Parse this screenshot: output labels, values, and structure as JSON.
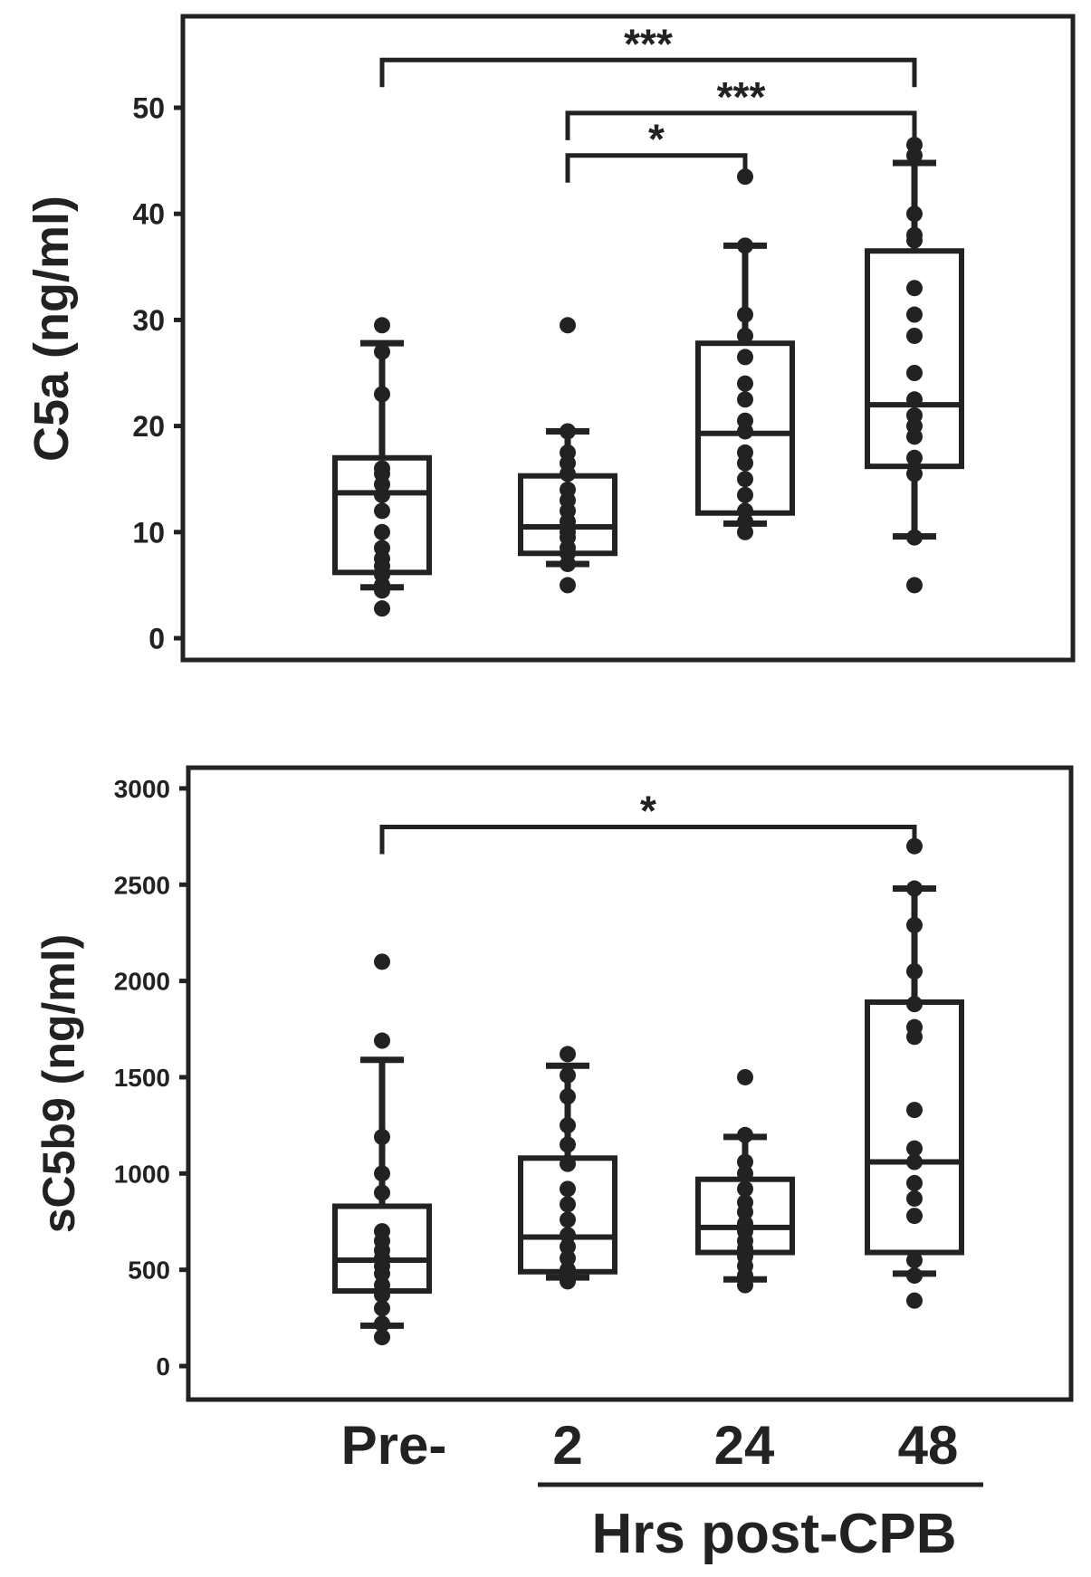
{
  "chart_data": [
    {
      "type": "boxplot",
      "ylabel": "C5a (ng/ml)",
      "ylim": [
        0,
        57
      ],
      "yticks": [
        0,
        10,
        20,
        30,
        40,
        50
      ],
      "categories": [
        "Pre-",
        "2",
        "24",
        "48"
      ],
      "boxes": [
        {
          "category": "Pre-",
          "whisker_low": 4.8,
          "q1": 6.2,
          "median": 13.7,
          "q3": 17.0,
          "whisker_high": 27.8,
          "points": [
            2.8,
            4.5,
            5.0,
            6.0,
            6.8,
            7.5,
            8.5,
            10.0,
            12.0,
            13.5,
            14.5,
            15.5,
            16.0,
            23.0,
            27.0,
            29.5
          ]
        },
        {
          "category": "2",
          "whisker_low": 7.0,
          "q1": 8.0,
          "median": 10.5,
          "q3": 15.3,
          "whisker_high": 19.5,
          "points": [
            5.0,
            7.0,
            8.0,
            8.5,
            9.5,
            10.0,
            10.5,
            11.0,
            12.0,
            13.0,
            14.0,
            15.5,
            16.5,
            17.5,
            19.5,
            29.5
          ]
        },
        {
          "category": "24",
          "whisker_low": 10.8,
          "q1": 11.8,
          "median": 19.3,
          "q3": 27.8,
          "whisker_high": 37.0,
          "points": [
            10.0,
            11.0,
            12.0,
            13.5,
            15.0,
            16.5,
            17.5,
            19.5,
            20.5,
            22.5,
            24.0,
            26.5,
            28.5,
            30.5,
            37.0,
            43.5
          ]
        },
        {
          "category": "48",
          "whisker_low": 9.6,
          "q1": 16.2,
          "median": 22.0,
          "q3": 36.5,
          "whisker_high": 44.8,
          "points": [
            5.0,
            9.5,
            15.5,
            17.0,
            19.0,
            20.0,
            21.0,
            22.5,
            25.0,
            28.5,
            30.5,
            33.0,
            37.5,
            38.0,
            40.0,
            45.5,
            46.5
          ]
        }
      ],
      "significance": [
        {
          "from": "Pre-",
          "to": "48",
          "label": "***",
          "y": 54.5
        },
        {
          "from": "2",
          "to": "48",
          "label": "***",
          "y": 49.5
        },
        {
          "from": "2",
          "to": "24",
          "label": "*",
          "y": 45.5
        }
      ]
    },
    {
      "type": "boxplot",
      "ylabel": "sC5b9 (ng/ml)",
      "ylim": [
        -200,
        3100
      ],
      "yticks": [
        0,
        500,
        1000,
        1500,
        2000,
        2500,
        3000
      ],
      "categories": [
        "Pre-",
        "2",
        "24",
        "48"
      ],
      "boxes": [
        {
          "category": "Pre-",
          "whisker_low": 210,
          "q1": 390,
          "median": 550,
          "q3": 830,
          "whisker_high": 1590,
          "points": [
            150,
            220,
            300,
            370,
            420,
            480,
            520,
            560,
            600,
            650,
            700,
            900,
            1000,
            1190,
            1690,
            2100
          ]
        },
        {
          "category": "2",
          "whisker_low": 460,
          "q1": 490,
          "median": 670,
          "q3": 1080,
          "whisker_high": 1560,
          "points": [
            440,
            460,
            500,
            560,
            620,
            680,
            760,
            840,
            920,
            1050,
            1150,
            1250,
            1400,
            1510,
            1620
          ]
        },
        {
          "category": "24",
          "whisker_low": 450,
          "q1": 590,
          "median": 720,
          "q3": 970,
          "whisker_high": 1190,
          "points": [
            420,
            470,
            520,
            570,
            610,
            650,
            700,
            740,
            800,
            850,
            920,
            1000,
            1060,
            1200,
            1500
          ]
        },
        {
          "category": "48",
          "whisker_low": 480,
          "q1": 590,
          "median": 1060,
          "q3": 1890,
          "whisker_high": 2480,
          "points": [
            340,
            470,
            550,
            780,
            870,
            950,
            1060,
            1130,
            1330,
            1710,
            1760,
            1880,
            2050,
            2290,
            2480,
            2700
          ]
        }
      ],
      "significance": [
        {
          "from": "Pre-",
          "to": "48",
          "label": "*",
          "y": 2800
        }
      ]
    }
  ],
  "x_axis": {
    "tick_labels": [
      "Pre-",
      "2",
      "24",
      "48"
    ],
    "group_label": "Hrs post-CPB"
  }
}
